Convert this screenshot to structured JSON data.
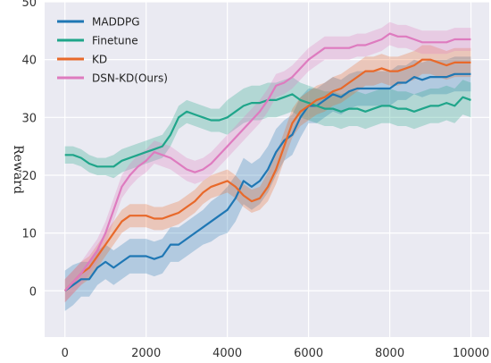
{
  "chart_data": {
    "type": "line",
    "title": "",
    "xlabel": "",
    "ylabel": "Reward",
    "xlim": [
      -500,
      10450
    ],
    "ylim": [
      -8,
      50
    ],
    "xticks": [
      0,
      2000,
      4000,
      6000,
      8000,
      10000
    ],
    "yticks": [
      0,
      10,
      20,
      30,
      40,
      50
    ],
    "grid": true,
    "legend_position": "top-left",
    "series": [
      {
        "name": "MADDPG",
        "color": "#1f77b4",
        "x": [
          0,
          200,
          400,
          600,
          800,
          1000,
          1200,
          1400,
          1600,
          1800,
          2000,
          2200,
          2400,
          2600,
          2800,
          3000,
          3200,
          3400,
          3600,
          3800,
          4000,
          4200,
          4400,
          4600,
          4800,
          5000,
          5200,
          5400,
          5600,
          5800,
          6000,
          6200,
          6400,
          6600,
          6800,
          7000,
          7200,
          7400,
          7600,
          7800,
          8000,
          8200,
          8400,
          8600,
          8800,
          9000,
          9200,
          9400,
          9600,
          9800,
          10000
        ],
        "y": [
          0,
          1,
          2,
          2,
          4,
          5,
          4,
          5,
          6,
          6,
          6,
          5.5,
          6,
          8,
          8,
          9,
          10,
          11,
          12,
          13,
          14,
          16,
          19,
          18,
          19,
          21,
          24,
          26,
          27,
          30,
          32,
          32,
          33,
          34,
          33.5,
          34.5,
          35,
          35,
          35,
          35,
          35,
          36,
          36,
          37,
          36.5,
          37,
          37,
          37,
          37.5,
          37.5,
          37.5
        ],
        "band": [
          3.5,
          3.5,
          3,
          3,
          3,
          3,
          3,
          3,
          3,
          3,
          3,
          3,
          3,
          3,
          3,
          3,
          3,
          3,
          3.5,
          3.5,
          4,
          4,
          4,
          4,
          4,
          4,
          4,
          3.5,
          3.5,
          3.5,
          3,
          3,
          3,
          3,
          3,
          3,
          3,
          3,
          3,
          3,
          3,
          3,
          3,
          3,
          3,
          3,
          3,
          3,
          3,
          3,
          3
        ]
      },
      {
        "name": "Finetune",
        "color": "#1fa58a",
        "x": [
          0,
          200,
          400,
          600,
          800,
          1000,
          1200,
          1400,
          1600,
          1800,
          2000,
          2200,
          2400,
          2600,
          2800,
          3000,
          3200,
          3400,
          3600,
          3800,
          4000,
          4200,
          4400,
          4600,
          4800,
          5000,
          5200,
          5400,
          5600,
          5800,
          6000,
          6200,
          6400,
          6600,
          6800,
          7000,
          7200,
          7400,
          7600,
          7800,
          8000,
          8200,
          8400,
          8600,
          8800,
          9000,
          9200,
          9400,
          9600,
          9800,
          10000
        ],
        "y": [
          23.5,
          23.5,
          23,
          22,
          21.5,
          21.5,
          21.5,
          22.5,
          23,
          23.5,
          24,
          24.5,
          25,
          27,
          30,
          31,
          30.5,
          30,
          29.5,
          29.5,
          30,
          31,
          32,
          32.5,
          32.5,
          33,
          33,
          33.5,
          34,
          33,
          32.5,
          32,
          31.5,
          31.5,
          31,
          31.5,
          31.5,
          31,
          31.5,
          32,
          32,
          31.5,
          31.5,
          31,
          31.5,
          32,
          32,
          32.5,
          32,
          33.5,
          33
        ],
        "band": [
          1.5,
          1.5,
          1.5,
          1.5,
          1.5,
          1.5,
          2,
          2,
          2,
          2,
          2,
          2,
          2,
          2,
          2,
          2,
          2,
          2,
          2,
          2,
          3,
          3,
          3,
          3,
          3,
          3,
          3,
          3,
          3,
          3,
          3,
          3,
          3,
          3,
          3,
          3,
          3,
          3,
          3,
          3,
          3,
          3,
          3,
          3,
          3,
          3,
          3,
          3,
          3,
          3,
          3
        ]
      },
      {
        "name": "KD",
        "color": "#e8692a",
        "x": [
          0,
          200,
          400,
          600,
          800,
          1000,
          1200,
          1400,
          1600,
          1800,
          2000,
          2200,
          2400,
          2600,
          2800,
          3000,
          3200,
          3400,
          3600,
          3800,
          4000,
          4200,
          4400,
          4600,
          4800,
          5000,
          5200,
          5400,
          5600,
          5800,
          6000,
          6200,
          6400,
          6600,
          6800,
          7000,
          7200,
          7400,
          7600,
          7800,
          8000,
          8200,
          8400,
          8600,
          8800,
          9000,
          9200,
          9400,
          9600,
          9800,
          10000
        ],
        "y": [
          0,
          1.5,
          3,
          4,
          6,
          8,
          10,
          12,
          13,
          13,
          13,
          12.5,
          12.5,
          13,
          13.5,
          14.5,
          15.5,
          17,
          18,
          18.5,
          19,
          18,
          16.5,
          15.5,
          16,
          18,
          21,
          25,
          29,
          31,
          32,
          33,
          33.5,
          34.5,
          35,
          36,
          37,
          38,
          38,
          38.5,
          38,
          38,
          38.5,
          39,
          40,
          40,
          39.5,
          39,
          39.5,
          39.5,
          39.5
        ],
        "band": [
          2,
          2,
          2,
          2,
          2,
          2,
          2,
          2,
          2,
          2,
          2,
          2,
          2,
          2,
          2,
          2,
          2,
          2,
          2,
          2,
          2,
          2,
          2,
          2,
          2,
          2.5,
          2.5,
          2.5,
          2.5,
          2.5,
          2.5,
          2.5,
          2.5,
          2.5,
          2.5,
          2.5,
          2.5,
          2.5,
          2.5,
          2.5,
          2.5,
          2.5,
          2.5,
          2.5,
          2.5,
          2.5,
          2.5,
          2.5,
          2.5,
          2.5,
          2.5
        ]
      },
      {
        "name": "DSN-KD(Ours)",
        "color": "#de7bbf",
        "x": [
          0,
          200,
          400,
          600,
          800,
          1000,
          1200,
          1400,
          1600,
          1800,
          2000,
          2200,
          2400,
          2600,
          2800,
          3000,
          3200,
          3400,
          3600,
          3800,
          4000,
          4200,
          4400,
          4600,
          4800,
          5000,
          5200,
          5400,
          5600,
          5800,
          6000,
          6200,
          6400,
          6600,
          6800,
          7000,
          7200,
          7400,
          7600,
          7800,
          8000,
          8200,
          8400,
          8600,
          8800,
          9000,
          9200,
          9400,
          9600,
          9800,
          10000
        ],
        "y": [
          0,
          1.5,
          3,
          5,
          7,
          10,
          14,
          18,
          20,
          21.5,
          22.5,
          24,
          23.5,
          23,
          22,
          21,
          20.5,
          21,
          22,
          23.5,
          25,
          26.5,
          28,
          29.5,
          31,
          33,
          35.5,
          36,
          37,
          38.5,
          40,
          41,
          42,
          42,
          42,
          42,
          42.5,
          42.5,
          43,
          43.5,
          44.5,
          44,
          44,
          43.5,
          43,
          43,
          43,
          43,
          43.5,
          43.5,
          43.5
        ],
        "band": [
          2,
          2,
          2,
          2,
          2,
          2,
          2,
          2,
          2,
          2,
          2,
          2,
          2,
          2,
          2,
          2,
          2,
          2,
          2,
          2,
          2,
          2,
          2,
          2,
          2,
          2,
          2,
          2,
          2,
          2,
          2,
          2,
          2,
          2,
          2,
          2,
          2,
          2,
          2,
          2,
          2,
          2,
          2,
          2,
          2,
          2,
          2,
          2,
          2,
          2,
          2
        ]
      }
    ]
  }
}
